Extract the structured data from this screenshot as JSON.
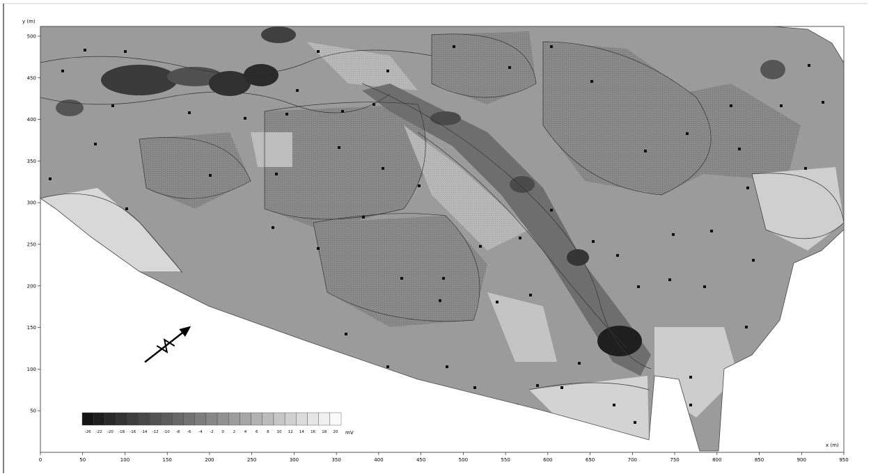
{
  "map": {
    "y_axis_label": "y (m)",
    "x_axis_label": "x (m)",
    "unit": "mV",
    "x_ticks": [
      "0",
      "50",
      "100",
      "150",
      "200",
      "250",
      "300",
      "350",
      "400",
      "450",
      "500",
      "550",
      "600",
      "650",
      "700",
      "750",
      "800",
      "850",
      "900",
      "950"
    ],
    "y_ticks": [
      "50",
      "100",
      "150",
      "200",
      "250",
      "300",
      "350",
      "400",
      "450",
      "500"
    ],
    "legend_labels": [
      "-26",
      "-22",
      "-20",
      "-18",
      "-16",
      "-14",
      "-12",
      "-10",
      "-8",
      "-6",
      "-4",
      "-2",
      "0",
      "2",
      "4",
      "6",
      "8",
      "10",
      "12",
      "14",
      "16",
      "18",
      "20"
    ],
    "colors": {
      "dark": "#1a1a1a",
      "mid": "#8c8c8c",
      "light": "#d8d8d8"
    },
    "north_arrow_icon": "north-arrow-icon"
  }
}
